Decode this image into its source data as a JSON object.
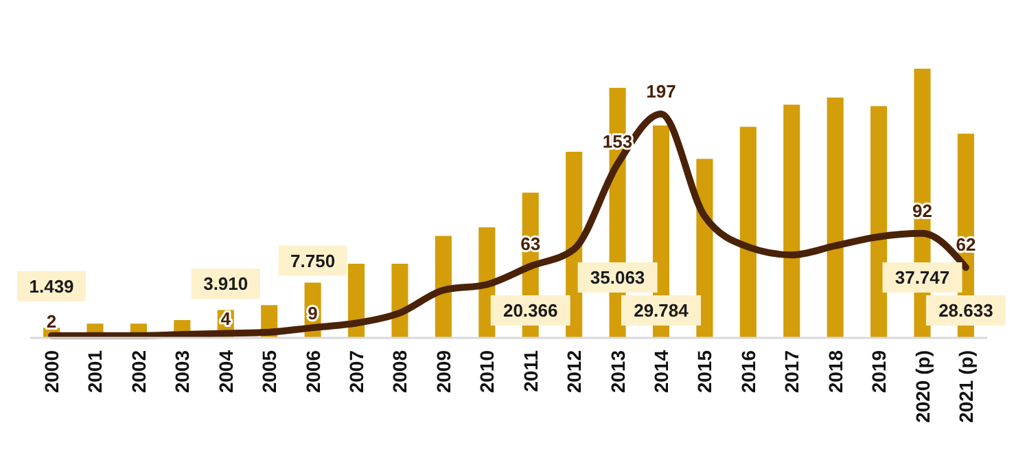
{
  "chart_data": {
    "type": "bar",
    "categories": [
      "2000",
      "2001",
      "2002",
      "2003",
      "2004",
      "2005",
      "2006",
      "2007",
      "2008",
      "2009",
      "2010",
      "2011",
      "2012",
      "2013",
      "2014",
      "2015",
      "2016",
      "2017",
      "2018",
      "2019",
      "2020 (p)",
      "2021 (p)"
    ],
    "series": [
      {
        "axis": "y",
        "color": "#d39e0a",
        "values": [
          1.439,
          2.0,
          2.0,
          2.5,
          3.91,
          4.6,
          7.75,
          10.4,
          10.4,
          14.3,
          15.5,
          20.366,
          26.1,
          35.063,
          29.784,
          25.1,
          29.6,
          32.7,
          33.7,
          32.5,
          37.747,
          28.633
        ],
        "value_labels": [
          "1.439",
          null,
          null,
          null,
          "3.910",
          null,
          "7.750",
          null,
          null,
          null,
          null,
          "20.366",
          null,
          "35.063",
          "29.784",
          null,
          null,
          null,
          null,
          null,
          "37.747",
          "28.633"
        ]
      },
      {
        "type": "line",
        "axis": "y2",
        "color": "#4a2208",
        "values": [
          2,
          2,
          2,
          3,
          4,
          5,
          9,
          13,
          22,
          42,
          47,
          63,
          78,
          153,
          197,
          107,
          80,
          73,
          81,
          89,
          92,
          62
        ],
        "value_labels": [
          "2",
          null,
          null,
          null,
          "4",
          null,
          "9",
          null,
          null,
          null,
          null,
          "63",
          null,
          "153",
          "197",
          null,
          null,
          null,
          null,
          null,
          "92",
          "62"
        ]
      }
    ],
    "tick_labels": "x",
    "marker": "none",
    "line_style": "solid"
  }
}
